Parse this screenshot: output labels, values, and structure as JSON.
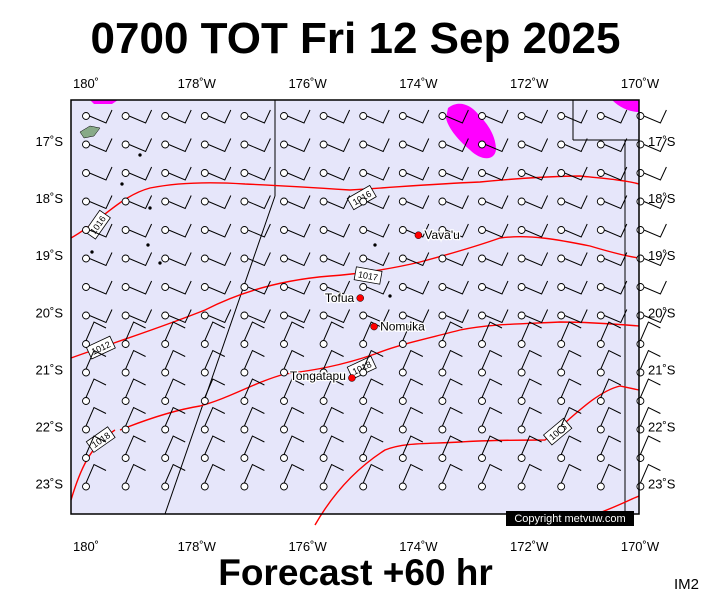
{
  "header": {
    "title": "0700 TOT Fri 12 Sep 2025"
  },
  "footer": {
    "forecast": "Forecast +60 hr",
    "image_code": "IM2"
  },
  "map": {
    "lon_labels": [
      "180˚",
      "178˚W",
      "176˚W",
      "174˚W",
      "172˚W",
      "170˚W"
    ],
    "lat_labels": [
      "17˚S",
      "18˚S",
      "19˚S",
      "20˚S",
      "21˚S",
      "22˚S",
      "23˚S"
    ],
    "places": [
      {
        "name": "Vava'u",
        "lon": -174.0,
        "lat": -18.65
      },
      {
        "name": "Tofua",
        "lon": -175.05,
        "lat": -19.75
      },
      {
        "name": "Nomuka",
        "lon": -174.8,
        "lat": -20.25
      },
      {
        "name": "Tongatapu",
        "lon": -175.2,
        "lat": -21.15
      }
    ],
    "isobar_labels": [
      "1016",
      "1016",
      "1017",
      "1012",
      "1018",
      "1016",
      "1018"
    ],
    "copyright": "Copyright metvuw.com",
    "colors": {
      "background": "#e6e6fa",
      "isobar": "#ff0000",
      "rain": "#ff00ff",
      "land": "#000000",
      "place": "#ff0000"
    }
  }
}
